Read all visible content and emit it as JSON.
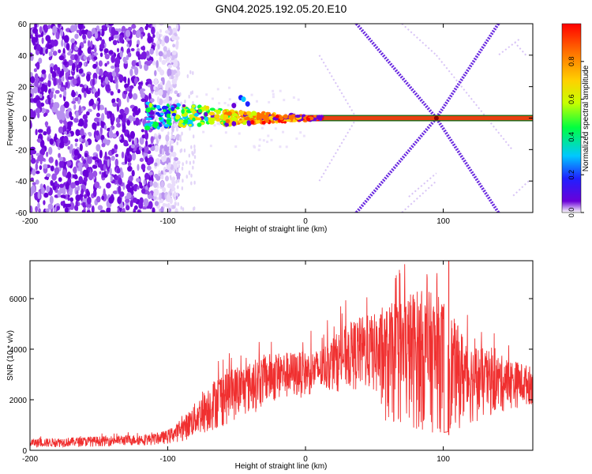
{
  "title": "GN04.2025.192.05.20.E10",
  "chart_data": [
    {
      "type": "heatmap",
      "xlabel": "Height of straight line (km)",
      "ylabel": "Frequency (Hz)",
      "xlim": [
        -200,
        165
      ],
      "ylim": [
        -60,
        60
      ],
      "xticks": [
        -200,
        -100,
        0,
        100
      ],
      "yticks": [
        -60,
        -40,
        -20,
        0,
        20,
        40,
        60
      ],
      "colorbar": {
        "label": "Normalized spectral amplitude",
        "range": [
          0,
          1
        ],
        "ticks": [
          0.0,
          0.2,
          0.4,
          0.6,
          0.8
        ],
        "tick_labels": [
          "0.0",
          "0.2",
          "0.4",
          "0.6",
          "0.8"
        ],
        "colormap": [
          "#ffffff",
          "#6a00d8",
          "#2020ff",
          "#00c8ff",
          "#00ff40",
          "#c8ff00",
          "#ffd000",
          "#ff7000",
          "#ff0000"
        ]
      },
      "features": {
        "noise_region_x": [
          -200,
          -100
        ],
        "central_line_freq": 0,
        "central_line_x": [
          -115,
          165
        ],
        "v_pattern_apex_x": 95,
        "v_pattern_endpoints_x": [
          37,
          140
        ]
      }
    },
    {
      "type": "line",
      "xlabel": "Height of straight line (km)",
      "ylabel": "SNR (10 * v/v)",
      "xlim": [
        -200,
        165
      ],
      "ylim": [
        0,
        7500
      ],
      "xticks": [
        -200,
        -100,
        0,
        100
      ],
      "yticks": [
        0,
        2000,
        4000,
        6000
      ],
      "color": "#f03030",
      "envelope": {
        "x": [
          -200,
          -150,
          -110,
          -100,
          -90,
          -80,
          -70,
          -60,
          -50,
          -40,
          -30,
          -20,
          -10,
          0,
          10,
          20,
          30,
          40,
          50,
          55,
          60,
          70,
          80,
          90,
          100,
          110,
          120,
          130,
          140,
          150,
          165
        ],
        "max": [
          450,
          550,
          650,
          800,
          1200,
          1900,
          2600,
          3200,
          3300,
          3500,
          3800,
          3900,
          3900,
          3900,
          4000,
          4500,
          5000,
          5300,
          5400,
          5500,
          5700,
          6200,
          6400,
          6300,
          6000,
          5000,
          4300,
          4000,
          3800,
          3600,
          3300
        ],
        "min": [
          100,
          150,
          200,
          250,
          350,
          500,
          700,
          900,
          1200,
          1400,
          1700,
          1900,
          2000,
          2100,
          2200,
          2300,
          2300,
          2300,
          2200,
          1300,
          900,
          800,
          750,
          700,
          700,
          800,
          1000,
          1200,
          1400,
          1600,
          1800
        ]
      },
      "peak": {
        "x": 104,
        "y": 7500
      },
      "gap": {
        "x": 102
      }
    }
  ]
}
